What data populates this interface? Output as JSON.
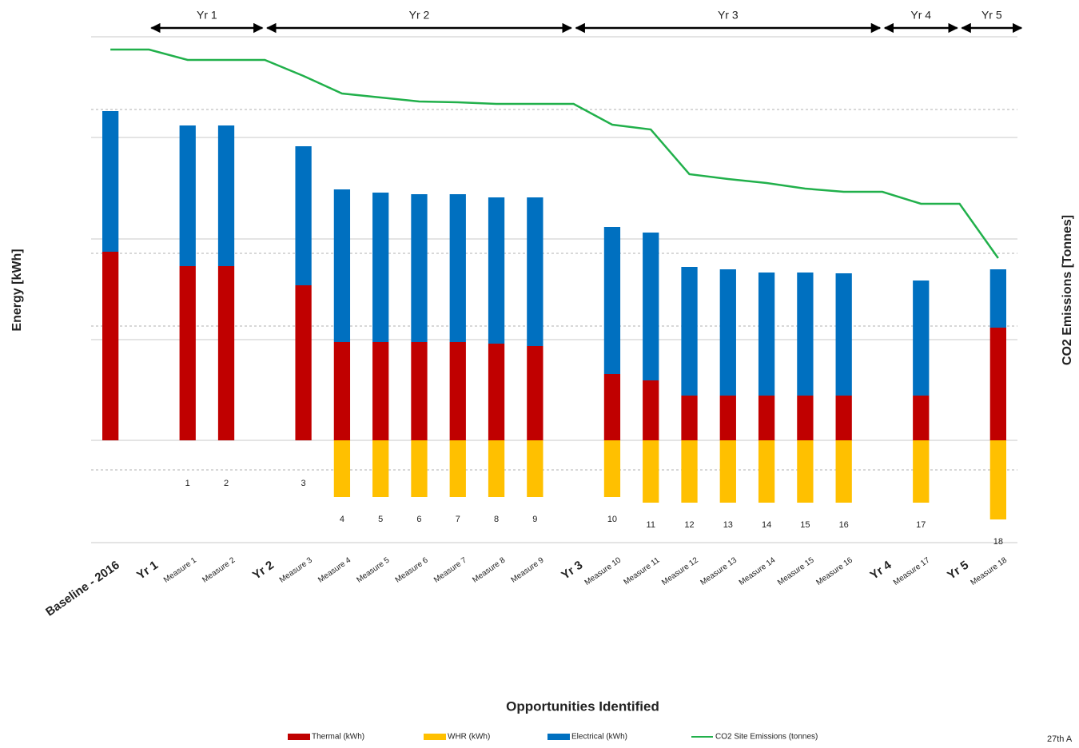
{
  "chart_data": {
    "type": "bar",
    "x_label": "Opportunities Identified",
    "y_label": "Energy [kWh]",
    "y2_label": "CO2 Emissions [Tonnes]",
    "footer_text": "27th A",
    "categories": [
      "Baseline - 2016",
      "Yr 1",
      "Measure 1",
      "Measure 2",
      "Yr 2",
      "Measure 3",
      "Measure 4",
      "Measure 5",
      "Measure 6",
      "Measure 7",
      "Measure 8",
      "Measure 9",
      "Yr 3",
      "Measure 10",
      "Measure 11",
      "Measure 12",
      "Measure 13",
      "Measure 14",
      "Measure 15",
      "Measure 16",
      "Yr 4",
      "Measure 17",
      "Yr 5",
      "Measure 18"
    ],
    "measure_numbers": [
      null,
      null,
      1,
      2,
      null,
      3,
      4,
      5,
      6,
      7,
      8,
      9,
      null,
      10,
      11,
      12,
      13,
      14,
      15,
      16,
      null,
      17,
      null,
      18
    ],
    "periods": [
      "Yr 1",
      "Yr 2",
      "Yr 3",
      "Yr 4",
      "Yr 5"
    ],
    "series": [
      {
        "name": "Thermal (kWh)",
        "color": "#c00000",
        "values": [
          236,
          null,
          218,
          218,
          null,
          194,
          123,
          123,
          123,
          123,
          121,
          118,
          null,
          83,
          75,
          56,
          56,
          56,
          56,
          56,
          null,
          56,
          null,
          141
        ]
      },
      {
        "name": "WHR (kWh)",
        "color": "#ffc000",
        "values": [
          null,
          null,
          null,
          null,
          null,
          null,
          -71,
          -71,
          -71,
          -71,
          -71,
          -71,
          null,
          -71,
          -78,
          -78,
          -78,
          -78,
          -78,
          -78,
          null,
          -78,
          null,
          -99
        ]
      },
      {
        "name": "Electrical (kWh)",
        "color": "#0070c0",
        "values": [
          176,
          null,
          176,
          176,
          null,
          174,
          191,
          187,
          185,
          185,
          183,
          186,
          null,
          184,
          185,
          161,
          158,
          154,
          154,
          153,
          null,
          144,
          null,
          73
        ]
      },
      {
        "name": "CO2 Site Emissions (tonnes)",
        "color": "#21b04b",
        "type": "line",
        "axis": "y2",
        "values": [
          617,
          617,
          604,
          604,
          604,
          584,
          562,
          557,
          552,
          551,
          549,
          549,
          549,
          523,
          517,
          461,
          455,
          450,
          443,
          439,
          439,
          424,
          424,
          356
        ]
      }
    ],
    "ylim": [
      -128,
      505
    ],
    "yticks": [
      -128,
      0,
      126,
      252,
      379,
      505
    ],
    "y2lim": [
      0,
      633
    ],
    "y2ticks": [
      91,
      271,
      362,
      542
    ],
    "grid": true
  }
}
